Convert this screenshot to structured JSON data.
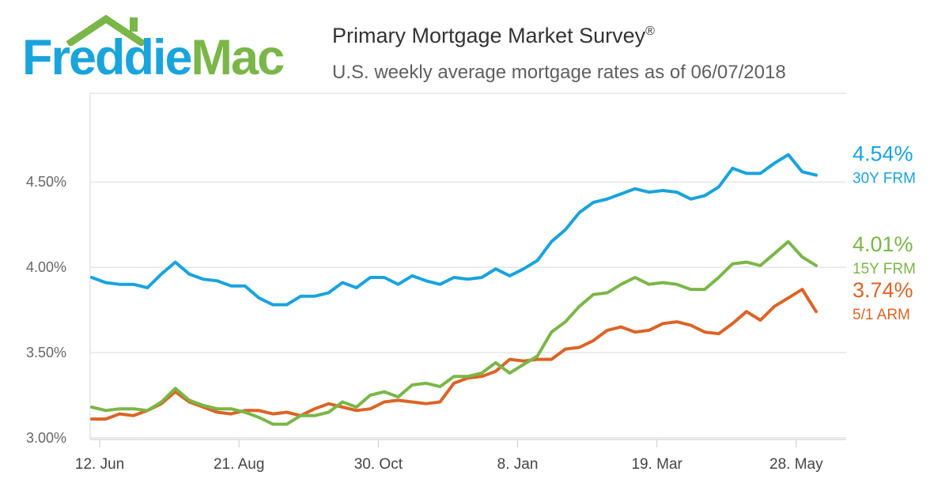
{
  "header": {
    "logo_freddie": "Freddie",
    "logo_mac": "Mac",
    "title": "Primary Mortgage Market Survey",
    "title_mark": "®",
    "subtitle": "U.S. weekly average mortgage rates as of 06/07/2018"
  },
  "chart_data": {
    "type": "line",
    "title": "Primary Mortgage Market Survey®",
    "subtitle": "U.S. weekly average mortgage rates as of 06/07/2018",
    "x": [
      "2017-06-08",
      "2017-06-15",
      "2017-06-22",
      "2017-06-29",
      "2017-07-06",
      "2017-07-13",
      "2017-07-20",
      "2017-07-27",
      "2017-08-03",
      "2017-08-10",
      "2017-08-17",
      "2017-08-24",
      "2017-08-31",
      "2017-09-07",
      "2017-09-14",
      "2017-09-21",
      "2017-09-28",
      "2017-10-05",
      "2017-10-12",
      "2017-10-19",
      "2017-10-26",
      "2017-11-02",
      "2017-11-09",
      "2017-11-16",
      "2017-11-22",
      "2017-11-30",
      "2017-12-07",
      "2017-12-14",
      "2017-12-21",
      "2017-12-28",
      "2018-01-04",
      "2018-01-11",
      "2018-01-18",
      "2018-01-25",
      "2018-02-01",
      "2018-02-08",
      "2018-02-15",
      "2018-02-22",
      "2018-03-01",
      "2018-03-08",
      "2018-03-15",
      "2018-03-22",
      "2018-03-29",
      "2018-04-05",
      "2018-04-12",
      "2018-04-19",
      "2018-04-26",
      "2018-05-03",
      "2018-05-10",
      "2018-05-17",
      "2018-05-24",
      "2018-05-31",
      "2018-06-07"
    ],
    "x_ticks": [
      "12. Jun",
      "21. Aug",
      "30. Oct",
      "8. Jan",
      "19. Mar",
      "28. May"
    ],
    "x_tick_dates": [
      "2017-06-12",
      "2017-08-21",
      "2017-10-30",
      "2018-01-08",
      "2018-03-19",
      "2018-05-28"
    ],
    "y_ticks": [
      "3.00%",
      "3.50%",
      "4.00%",
      "4.50%"
    ],
    "y_tick_values": [
      3.0,
      3.5,
      4.0,
      4.5
    ],
    "ylim": [
      2.99,
      5.02
    ],
    "grid": true,
    "series": [
      {
        "name": "30Y FRM",
        "color": "#19a3dd",
        "end_label": "4.54%",
        "values": [
          3.94,
          3.91,
          3.9,
          3.9,
          3.88,
          3.96,
          4.03,
          3.96,
          3.93,
          3.92,
          3.89,
          3.89,
          3.82,
          3.78,
          3.78,
          3.83,
          3.83,
          3.85,
          3.91,
          3.88,
          3.94,
          3.94,
          3.9,
          3.95,
          3.92,
          3.9,
          3.94,
          3.93,
          3.94,
          3.99,
          3.95,
          3.99,
          4.04,
          4.15,
          4.22,
          4.32,
          4.38,
          4.4,
          4.43,
          4.46,
          4.44,
          4.45,
          4.44,
          4.4,
          4.42,
          4.47,
          4.58,
          4.55,
          4.55,
          4.61,
          4.66,
          4.56,
          4.54
        ]
      },
      {
        "name": "15Y FRM",
        "color": "#7ab648",
        "end_label": "4.01%",
        "values": [
          3.18,
          3.16,
          3.17,
          3.17,
          3.16,
          3.21,
          3.29,
          3.22,
          3.19,
          3.17,
          3.17,
          3.15,
          3.12,
          3.08,
          3.08,
          3.13,
          3.13,
          3.15,
          3.21,
          3.18,
          3.25,
          3.27,
          3.24,
          3.31,
          3.32,
          3.3,
          3.36,
          3.36,
          3.38,
          3.44,
          3.38,
          3.43,
          3.48,
          3.62,
          3.68,
          3.77,
          3.84,
          3.85,
          3.9,
          3.94,
          3.9,
          3.91,
          3.9,
          3.87,
          3.87,
          3.94,
          4.02,
          4.03,
          4.01,
          4.08,
          4.15,
          4.06,
          4.01
        ]
      },
      {
        "name": "5/1 ARM",
        "color": "#dc6425",
        "end_label": "3.74%",
        "values": [
          3.11,
          3.11,
          3.14,
          3.13,
          3.16,
          3.2,
          3.27,
          3.21,
          3.18,
          3.15,
          3.14,
          3.16,
          3.16,
          3.14,
          3.15,
          3.13,
          3.17,
          3.2,
          3.18,
          3.16,
          3.17,
          3.21,
          3.22,
          3.21,
          3.2,
          3.21,
          3.32,
          3.35,
          3.36,
          3.39,
          3.46,
          3.45,
          3.46,
          3.46,
          3.52,
          3.53,
          3.57,
          3.63,
          3.65,
          3.62,
          3.63,
          3.67,
          3.68,
          3.66,
          3.62,
          3.61,
          3.67,
          3.74,
          3.69,
          3.77,
          3.82,
          3.87,
          3.74
        ]
      }
    ]
  }
}
